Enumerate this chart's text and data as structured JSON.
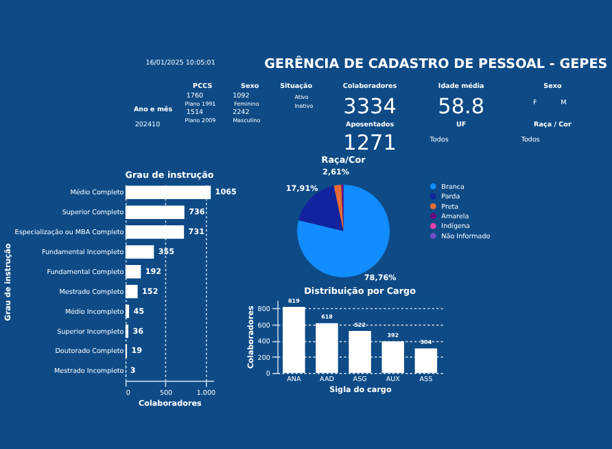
{
  "chart_data": [
    {
      "type": "other",
      "title": "GERÊNCIA DE CADASTRO DE PESSOAL - GEPES",
      "annotations": [
        "16/01/2025 10:05:01",
        "Ano e mês",
        "202410",
        "PCCS",
        "1760",
        "Plano 1991",
        "1514",
        "Plano 2009",
        "Sexo",
        "1092",
        "Feminino",
        "2242",
        "Masculino",
        "Situação",
        "Ativo",
        "Inativo",
        "Colaboradores",
        "3334",
        "Aposentados",
        "1271",
        "Idade média",
        "58.8",
        "UF",
        "Todos",
        "Sexo",
        "F",
        "M",
        "Raça / Cor",
        "Todos"
      ]
    },
    {
      "type": "bar",
      "orientation": "horizontal",
      "title": "Grau de instrução",
      "xlabel": "Colaboradores",
      "ylabel": "Grau de instrução",
      "categories": [
        "Médio Completo",
        "Superior Completo",
        "Especialização ou MBA Completo",
        "Fundamental Incompleto",
        "Fundamental Completo",
        "Mestrado Completo",
        "Médio Incompleto",
        "Superior Incompleto",
        "Doutorado Completo",
        "Mestrado Incompleto"
      ],
      "values": [
        1065,
        736,
        731,
        355,
        192,
        152,
        45,
        36,
        19,
        3
      ],
      "color": "#ffffff",
      "xlim": [
        0,
        1100
      ],
      "xticks": [
        0,
        500,
        {
          "value": 1000,
          "label": "1.000"
        }
      ],
      "grid": "x",
      "data_labels": true
    },
    {
      "type": "pie",
      "title": "Raça/Cor",
      "categories": [
        "Branca",
        "Parda",
        "Preta",
        "Amarela",
        "Indígena",
        "Não Informado"
      ],
      "values": [
        78.76,
        17.91,
        2.61,
        0.72,
        null,
        null
      ],
      "colors": [
        "#118dff",
        "#12239e",
        "#e66c37",
        "#6b007b",
        "#e044a7",
        "#744ec2"
      ],
      "value_labels": [
        "78,76%",
        "17,91%",
        "2,61%",
        null,
        null,
        null
      ],
      "legend": "right"
    },
    {
      "type": "bar",
      "title": "Distribuição por Cargo",
      "xlabel": "Sigla do cargo",
      "ylabel": "Colaboradores",
      "categories": [
        "ANA",
        "AAD",
        "ASG",
        "AUX",
        "ASS"
      ],
      "values": [
        819,
        618,
        522,
        392,
        304
      ],
      "color": "#ffffff",
      "ylim": [
        0,
        900
      ],
      "yticks": [
        0,
        200,
        400,
        600,
        800
      ],
      "grid": "y",
      "data_labels": true
    }
  ]
}
